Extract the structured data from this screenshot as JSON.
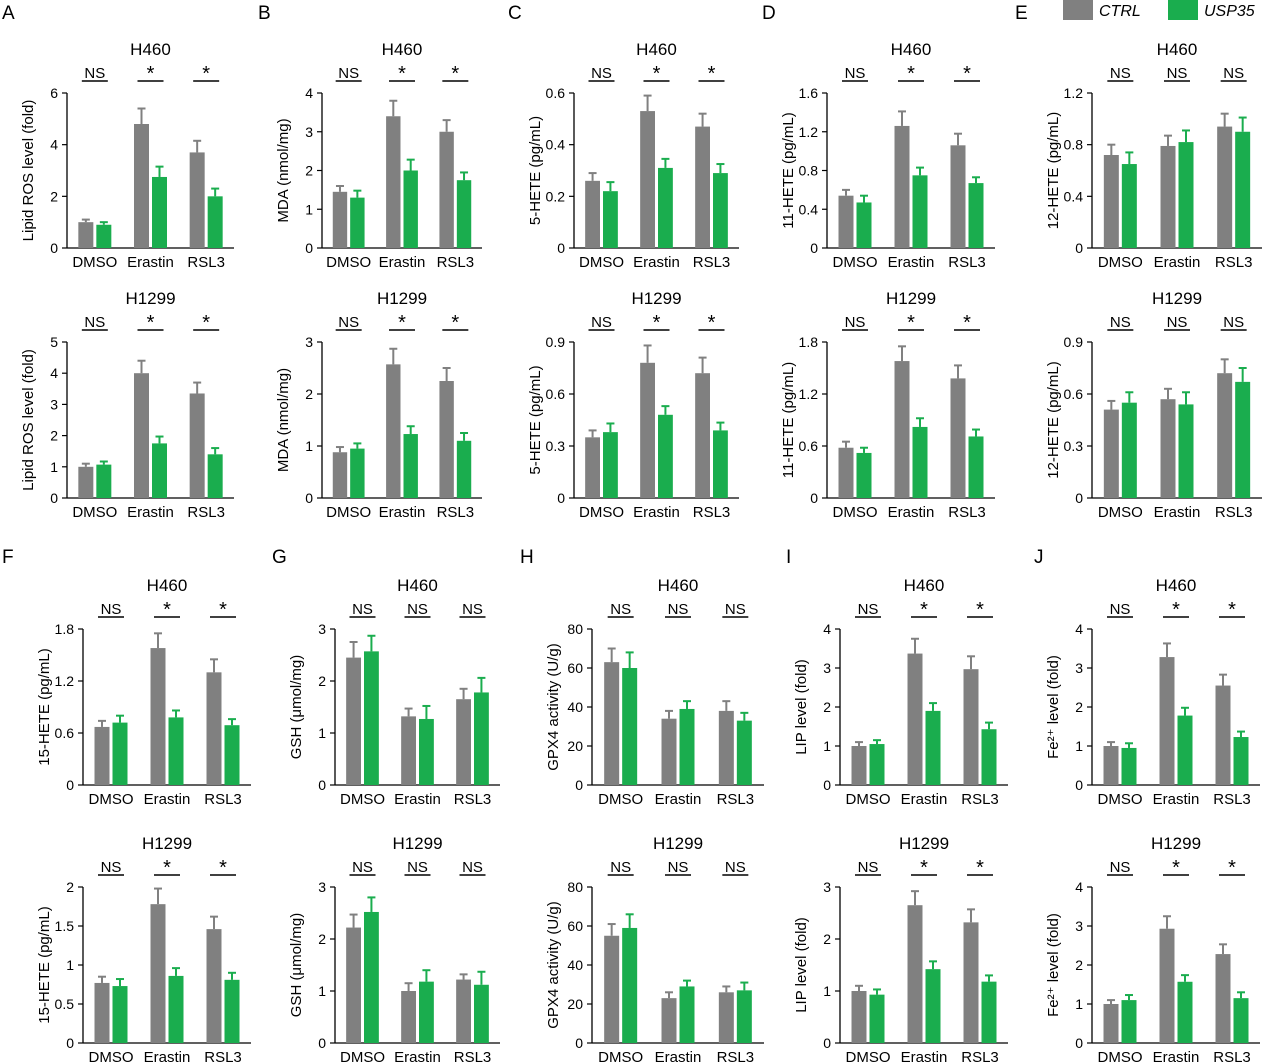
{
  "legend": {
    "entries": [
      {
        "label": "CTRL",
        "color": "#808080"
      },
      {
        "label": "USP35",
        "color": "#1aad4e"
      }
    ]
  },
  "colors": {
    "ctrl": "#808080",
    "usp35": "#1aad4e",
    "axis": "#000000"
  },
  "panel_letters": [
    "A",
    "B",
    "C",
    "D",
    "E",
    "F",
    "G",
    "H",
    "I",
    "J"
  ],
  "chart_data": [
    {
      "type": "bar",
      "panel": "A",
      "title": "H460",
      "ylabel": "Lipid ROS level (fold)",
      "categories": [
        "DMSO",
        "Erastin",
        "RSL3"
      ],
      "ylim": [
        0,
        6
      ],
      "yticks": [
        0,
        2,
        4,
        6
      ],
      "ticklabels": [
        "0",
        "2",
        "4",
        "6"
      ],
      "series": [
        {
          "name": "CTRL",
          "values": [
            1.0,
            4.8,
            3.7
          ],
          "errors": [
            0.1,
            0.6,
            0.45
          ]
        },
        {
          "name": "USP35",
          "values": [
            0.9,
            2.75,
            2.0
          ],
          "errors": [
            0.1,
            0.4,
            0.3
          ]
        }
      ],
      "significance": [
        "NS",
        "*",
        "*"
      ]
    },
    {
      "type": "bar",
      "panel": "B",
      "title": "H460",
      "ylabel": "MDA (nmol/mg)",
      "categories": [
        "DMSO",
        "Erastin",
        "RSL3"
      ],
      "ylim": [
        0,
        4
      ],
      "yticks": [
        0,
        1,
        2,
        3,
        4
      ],
      "ticklabels": [
        "0",
        "1",
        "2",
        "3",
        "4"
      ],
      "series": [
        {
          "name": "CTRL",
          "values": [
            1.45,
            3.4,
            3.0
          ],
          "errors": [
            0.15,
            0.4,
            0.3
          ]
        },
        {
          "name": "USP35",
          "values": [
            1.3,
            2.0,
            1.75
          ],
          "errors": [
            0.18,
            0.28,
            0.2
          ]
        }
      ],
      "significance": [
        "NS",
        "*",
        "*"
      ]
    },
    {
      "type": "bar",
      "panel": "C",
      "title": "H460",
      "ylabel": "5-HETE (pg/mL)",
      "categories": [
        "DMSO",
        "Erastin",
        "RSL3"
      ],
      "ylim": [
        0,
        0.6
      ],
      "yticks": [
        0,
        0.2,
        0.4,
        0.6
      ],
      "ticklabels": [
        "0",
        "0.2",
        "0.4",
        "0.6"
      ],
      "series": [
        {
          "name": "CTRL",
          "values": [
            0.26,
            0.53,
            0.47
          ],
          "errors": [
            0.03,
            0.06,
            0.05
          ]
        },
        {
          "name": "USP35",
          "values": [
            0.22,
            0.31,
            0.29
          ],
          "errors": [
            0.035,
            0.035,
            0.035
          ]
        }
      ],
      "significance": [
        "NS",
        "*",
        "*"
      ]
    },
    {
      "type": "bar",
      "panel": "D",
      "title": "H460",
      "ylabel": "11-HETE (pg/mL)",
      "categories": [
        "DMSO",
        "Erastin",
        "RSL3"
      ],
      "ylim": [
        0,
        1.6
      ],
      "yticks": [
        0,
        0.4,
        0.8,
        1.2,
        1.6
      ],
      "ticklabels": [
        "0",
        "0.4",
        "0.8",
        "1.2",
        "1.6"
      ],
      "series": [
        {
          "name": "CTRL",
          "values": [
            0.54,
            1.26,
            1.06
          ],
          "errors": [
            0.06,
            0.15,
            0.12
          ]
        },
        {
          "name": "USP35",
          "values": [
            0.47,
            0.75,
            0.67
          ],
          "errors": [
            0.07,
            0.08,
            0.06
          ]
        }
      ],
      "significance": [
        "NS",
        "*",
        "*"
      ]
    },
    {
      "type": "bar",
      "panel": "E",
      "title": "H460",
      "ylabel": "12-HETE (pg/mL)",
      "categories": [
        "DMSO",
        "Erastin",
        "RSL3"
      ],
      "ylim": [
        0,
        1.2
      ],
      "yticks": [
        0,
        0.4,
        0.8,
        1.2
      ],
      "ticklabels": [
        "0",
        "0.4",
        "0.8",
        "1.2"
      ],
      "series": [
        {
          "name": "CTRL",
          "values": [
            0.72,
            0.79,
            0.94
          ],
          "errors": [
            0.08,
            0.08,
            0.1
          ]
        },
        {
          "name": "USP35",
          "values": [
            0.65,
            0.82,
            0.9
          ],
          "errors": [
            0.09,
            0.09,
            0.11
          ]
        }
      ],
      "significance": [
        "NS",
        "NS",
        "NS"
      ]
    },
    {
      "type": "bar",
      "panel": "A",
      "title": "H1299",
      "ylabel": "Lipid ROS level (fold)",
      "categories": [
        "DMSO",
        "Erastin",
        "RSL3"
      ],
      "ylim": [
        0,
        5
      ],
      "yticks": [
        0,
        1,
        2,
        3,
        4,
        5
      ],
      "ticklabels": [
        "0",
        "1",
        "2",
        "3",
        "4",
        "5"
      ],
      "series": [
        {
          "name": "CTRL",
          "values": [
            1.0,
            4.0,
            3.35
          ],
          "errors": [
            0.1,
            0.4,
            0.35
          ]
        },
        {
          "name": "USP35",
          "values": [
            1.07,
            1.75,
            1.4
          ],
          "errors": [
            0.1,
            0.22,
            0.2
          ]
        }
      ],
      "significance": [
        "NS",
        "*",
        "*"
      ]
    },
    {
      "type": "bar",
      "panel": "B",
      "title": "H1299",
      "ylabel": "MDA (nmol/mg)",
      "categories": [
        "DMSO",
        "Erastin",
        "RSL3"
      ],
      "ylim": [
        0,
        3
      ],
      "yticks": [
        0,
        1,
        2,
        3
      ],
      "ticklabels": [
        "0",
        "1",
        "2",
        "3"
      ],
      "series": [
        {
          "name": "CTRL",
          "values": [
            0.88,
            2.57,
            2.25
          ],
          "errors": [
            0.1,
            0.3,
            0.25
          ]
        },
        {
          "name": "USP35",
          "values": [
            0.95,
            1.23,
            1.1
          ],
          "errors": [
            0.1,
            0.15,
            0.15
          ]
        }
      ],
      "significance": [
        "NS",
        "*",
        "*"
      ]
    },
    {
      "type": "bar",
      "panel": "C",
      "title": "H1299",
      "ylabel": "5-HETE (pg/mL)",
      "categories": [
        "DMSO",
        "Erastin",
        "RSL3"
      ],
      "ylim": [
        0,
        0.9
      ],
      "yticks": [
        0,
        0.3,
        0.6,
        0.9
      ],
      "ticklabels": [
        "0",
        "0.3",
        "0.6",
        "0.9"
      ],
      "series": [
        {
          "name": "CTRL",
          "values": [
            0.35,
            0.78,
            0.72
          ],
          "errors": [
            0.04,
            0.1,
            0.09
          ]
        },
        {
          "name": "USP35",
          "values": [
            0.38,
            0.48,
            0.39
          ],
          "errors": [
            0.05,
            0.05,
            0.045
          ]
        }
      ],
      "significance": [
        "NS",
        "*",
        "*"
      ]
    },
    {
      "type": "bar",
      "panel": "D",
      "title": "H1299",
      "ylabel": "11-HETE (pg/mL)",
      "categories": [
        "DMSO",
        "Erastin",
        "RSL3"
      ],
      "ylim": [
        0,
        1.8
      ],
      "yticks": [
        0,
        0.6,
        1.2,
        1.8
      ],
      "ticklabels": [
        "0",
        "0.6",
        "1.2",
        "1.8"
      ],
      "series": [
        {
          "name": "CTRL",
          "values": [
            0.58,
            1.58,
            1.38
          ],
          "errors": [
            0.07,
            0.17,
            0.15
          ]
        },
        {
          "name": "USP35",
          "values": [
            0.52,
            0.82,
            0.71
          ],
          "errors": [
            0.06,
            0.1,
            0.08
          ]
        }
      ],
      "significance": [
        "NS",
        "*",
        "*"
      ]
    },
    {
      "type": "bar",
      "panel": "E",
      "title": "H1299",
      "ylabel": "12-HETE (pg/mL)",
      "categories": [
        "DMSO",
        "Erastin",
        "RSL3"
      ],
      "ylim": [
        0,
        0.9
      ],
      "yticks": [
        0,
        0.3,
        0.6,
        0.9
      ],
      "ticklabels": [
        "0",
        "0.3",
        "0.6",
        "0.9"
      ],
      "series": [
        {
          "name": "CTRL",
          "values": [
            0.51,
            0.57,
            0.72
          ],
          "errors": [
            0.05,
            0.06,
            0.08
          ]
        },
        {
          "name": "USP35",
          "values": [
            0.55,
            0.54,
            0.67
          ],
          "errors": [
            0.06,
            0.07,
            0.08
          ]
        }
      ],
      "significance": [
        "NS",
        "NS",
        "NS"
      ]
    },
    {
      "type": "bar",
      "panel": "F",
      "title": "H460",
      "ylabel": "15-HETE (pg/mL)",
      "categories": [
        "DMSO",
        "Erastin",
        "RSL3"
      ],
      "ylim": [
        0,
        1.8
      ],
      "yticks": [
        0,
        0.6,
        1.2,
        1.8
      ],
      "ticklabels": [
        "0",
        "0.6",
        "1.2",
        "1.8"
      ],
      "series": [
        {
          "name": "CTRL",
          "values": [
            0.67,
            1.58,
            1.3
          ],
          "errors": [
            0.07,
            0.17,
            0.15
          ]
        },
        {
          "name": "USP35",
          "values": [
            0.72,
            0.78,
            0.69
          ],
          "errors": [
            0.08,
            0.08,
            0.07
          ]
        }
      ],
      "significance": [
        "NS",
        "*",
        "*"
      ]
    },
    {
      "type": "bar",
      "panel": "G",
      "title": "H460",
      "ylabel": "GSH (μmol/mg)",
      "categories": [
        "DMSO",
        "Erastin",
        "RSL3"
      ],
      "ylim": [
        0,
        3
      ],
      "yticks": [
        0,
        1,
        2,
        3
      ],
      "ticklabels": [
        "0",
        "1",
        "2",
        "3"
      ],
      "series": [
        {
          "name": "CTRL",
          "values": [
            2.45,
            1.32,
            1.65
          ],
          "errors": [
            0.3,
            0.15,
            0.2
          ]
        },
        {
          "name": "USP35",
          "values": [
            2.57,
            1.27,
            1.78
          ],
          "errors": [
            0.3,
            0.25,
            0.28
          ]
        }
      ],
      "significance": [
        "NS",
        "NS",
        "NS"
      ]
    },
    {
      "type": "bar",
      "panel": "H",
      "title": "H460",
      "ylabel": "GPX4 activity (U/g)",
      "categories": [
        "DMSO",
        "Erastin",
        "RSL3"
      ],
      "ylim": [
        0,
        80
      ],
      "yticks": [
        0,
        20,
        40,
        60,
        80
      ],
      "ticklabels": [
        "0",
        "20",
        "40",
        "60",
        "80"
      ],
      "series": [
        {
          "name": "CTRL",
          "values": [
            63,
            34,
            38
          ],
          "errors": [
            7,
            4,
            5
          ]
        },
        {
          "name": "USP35",
          "values": [
            60,
            39,
            33
          ],
          "errors": [
            8,
            4,
            4
          ]
        }
      ],
      "significance": [
        "NS",
        "NS",
        "NS"
      ]
    },
    {
      "type": "bar",
      "panel": "I",
      "title": "H460",
      "ylabel": "LIP level (fold)",
      "categories": [
        "DMSO",
        "Erastin",
        "RSL3"
      ],
      "ylim": [
        0,
        4
      ],
      "yticks": [
        0,
        1,
        2,
        3,
        4
      ],
      "ticklabels": [
        "0",
        "1",
        "2",
        "3",
        "4"
      ],
      "series": [
        {
          "name": "CTRL",
          "values": [
            1.0,
            3.37,
            2.97
          ],
          "errors": [
            0.1,
            0.38,
            0.33
          ]
        },
        {
          "name": "USP35",
          "values": [
            1.05,
            1.9,
            1.43
          ],
          "errors": [
            0.1,
            0.2,
            0.17
          ]
        }
      ],
      "significance": [
        "NS",
        "*",
        "*"
      ]
    },
    {
      "type": "bar",
      "panel": "J",
      "title": "H460",
      "ylabel": "Fe²⁺ level (fold)",
      "categories": [
        "DMSO",
        "Erastin",
        "RSL3"
      ],
      "ylim": [
        0,
        4
      ],
      "yticks": [
        0,
        1,
        2,
        3,
        4
      ],
      "ticklabels": [
        "0",
        "1",
        "2",
        "3",
        "4"
      ],
      "series": [
        {
          "name": "CTRL",
          "values": [
            1.0,
            3.28,
            2.55
          ],
          "errors": [
            0.1,
            0.35,
            0.28
          ]
        },
        {
          "name": "USP35",
          "values": [
            0.95,
            1.78,
            1.23
          ],
          "errors": [
            0.12,
            0.2,
            0.14
          ]
        }
      ],
      "significance": [
        "NS",
        "*",
        "*"
      ]
    },
    {
      "type": "bar",
      "panel": "F",
      "title": "H1299",
      "ylabel": "15-HETE (pg/mL)",
      "categories": [
        "DMSO",
        "Erastin",
        "RSL3"
      ],
      "ylim": [
        0,
        2
      ],
      "yticks": [
        0,
        0.5,
        1,
        1.5,
        2
      ],
      "ticklabels": [
        "0",
        "0.5",
        "1",
        "1.5",
        "2"
      ],
      "series": [
        {
          "name": "CTRL",
          "values": [
            0.77,
            1.78,
            1.46
          ],
          "errors": [
            0.08,
            0.2,
            0.16
          ]
        },
        {
          "name": "USP35",
          "values": [
            0.73,
            0.86,
            0.81
          ],
          "errors": [
            0.09,
            0.1,
            0.09
          ]
        }
      ],
      "significance": [
        "NS",
        "*",
        "*"
      ]
    },
    {
      "type": "bar",
      "panel": "G",
      "title": "H1299",
      "ylabel": "GSH (μmol/mg)",
      "categories": [
        "DMSO",
        "Erastin",
        "RSL3"
      ],
      "ylim": [
        0,
        3
      ],
      "yticks": [
        0,
        1,
        2,
        3
      ],
      "ticklabels": [
        "0",
        "1",
        "2",
        "3"
      ],
      "series": [
        {
          "name": "CTRL",
          "values": [
            2.22,
            1.0,
            1.22
          ],
          "errors": [
            0.25,
            0.15,
            0.1
          ]
        },
        {
          "name": "USP35",
          "values": [
            2.52,
            1.18,
            1.12
          ],
          "errors": [
            0.28,
            0.22,
            0.25
          ]
        }
      ],
      "significance": [
        "NS",
        "NS",
        "NS"
      ]
    },
    {
      "type": "bar",
      "panel": "H",
      "title": "H1299",
      "ylabel": "GPX4 activity (U/g)",
      "categories": [
        "DMSO",
        "Erastin",
        "RSL3"
      ],
      "ylim": [
        0,
        80
      ],
      "yticks": [
        0,
        20,
        40,
        60,
        80
      ],
      "ticklabels": [
        "0",
        "20",
        "40",
        "60",
        "80"
      ],
      "series": [
        {
          "name": "CTRL",
          "values": [
            55,
            23,
            26
          ],
          "errors": [
            6,
            3,
            3
          ]
        },
        {
          "name": "USP35",
          "values": [
            59,
            29,
            27
          ],
          "errors": [
            7,
            3,
            4
          ]
        }
      ],
      "significance": [
        "NS",
        "NS",
        "NS"
      ]
    },
    {
      "type": "bar",
      "panel": "I",
      "title": "H1299",
      "ylabel": "LIP level (fold)",
      "categories": [
        "DMSO",
        "Erastin",
        "RSL3"
      ],
      "ylim": [
        0,
        3
      ],
      "yticks": [
        0,
        1,
        2,
        3
      ],
      "ticklabels": [
        "0",
        "1",
        "2",
        "3"
      ],
      "series": [
        {
          "name": "CTRL",
          "values": [
            1.0,
            2.65,
            2.32
          ],
          "errors": [
            0.1,
            0.27,
            0.25
          ]
        },
        {
          "name": "USP35",
          "values": [
            0.93,
            1.42,
            1.18
          ],
          "errors": [
            0.1,
            0.15,
            0.12
          ]
        }
      ],
      "significance": [
        "NS",
        "*",
        "*"
      ]
    },
    {
      "type": "bar",
      "panel": "J",
      "title": "H1299",
      "ylabel": "Fe²⁺ level (fold)",
      "categories": [
        "DMSO",
        "Erastin",
        "RSL3"
      ],
      "ylim": [
        0,
        4
      ],
      "yticks": [
        0,
        1,
        2,
        3,
        4
      ],
      "ticklabels": [
        "0",
        "1",
        "2",
        "3",
        "4"
      ],
      "series": [
        {
          "name": "CTRL",
          "values": [
            1.0,
            2.93,
            2.28
          ],
          "errors": [
            0.1,
            0.32,
            0.25
          ]
        },
        {
          "name": "USP35",
          "values": [
            1.1,
            1.57,
            1.15
          ],
          "errors": [
            0.13,
            0.17,
            0.15
          ]
        }
      ],
      "significance": [
        "NS",
        "*",
        "*"
      ]
    }
  ]
}
